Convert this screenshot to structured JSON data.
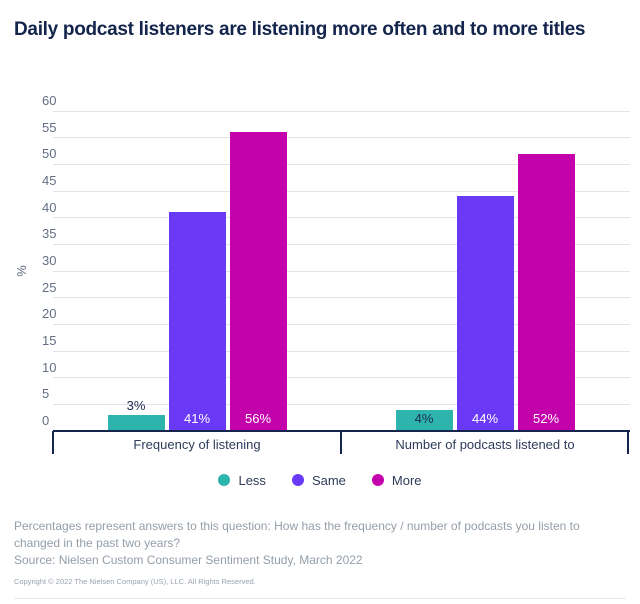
{
  "title": "Daily podcast listeners are listening more often and to more titles",
  "chart_data": {
    "type": "bar",
    "categories": [
      "Frequency of listening",
      "Number of podcasts listened to"
    ],
    "series": [
      {
        "name": "Less",
        "color": "#2cb4ad",
        "label_color": "#1d2b50",
        "values": [
          3,
          4
        ],
        "value_labels": [
          "3%",
          "4%"
        ]
      },
      {
        "name": "Same",
        "color": "#6a39f6",
        "label_color": "#ffffff",
        "values": [
          41,
          44
        ],
        "value_labels": [
          "41%",
          "44%"
        ]
      },
      {
        "name": "More",
        "color": "#c402ab",
        "label_color": "#ffffff",
        "values": [
          56,
          52
        ],
        "value_labels": [
          "56%",
          "52%"
        ]
      }
    ],
    "ylabel": "%",
    "ylim": [
      0,
      60
    ],
    "ytick_step": 5,
    "grid": true,
    "legend_position": "bottom"
  },
  "footer": {
    "note": "Percentages represent answers to this question: How has the frequency / number of podcasts you listen to changed in the past two years?",
    "source": "Source: Nielsen Custom Consumer Sentiment Study, March 2022",
    "copyright": "Copyright © 2022 The Nielsen Company (US), LLC. All Rights Reserved."
  },
  "colors": {
    "title_text": "#14254d",
    "axis_line": "#16254e",
    "grid_line": "#dfe3ea",
    "tick_label": "#646e84",
    "category_label": "#2e3c5a",
    "footnote_text": "#949ea9"
  }
}
